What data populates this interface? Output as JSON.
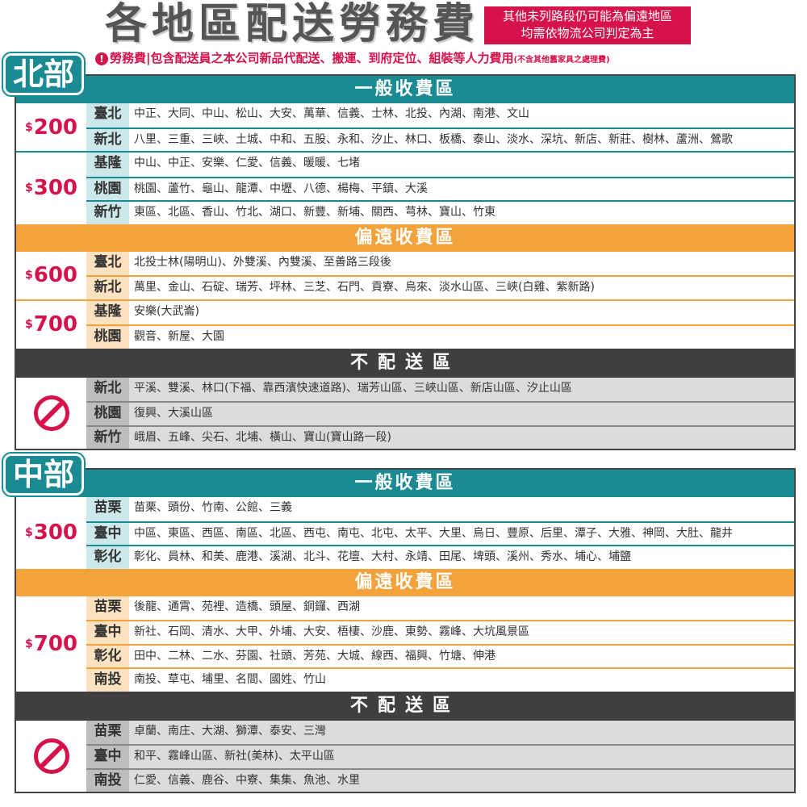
{
  "header": {
    "title": "各地區配送勞務費",
    "note_line1": "其他未列路段仍可能為偏遠地區",
    "note_line2": "均需依物流公司判定為主",
    "subtitle_icon": "exclamation-icon",
    "subtitle_mark": "!",
    "subtitle": "勞務費|包含配送員之本公司新品代配送、搬運、到府定位、組裝等人力費用",
    "subtitle_small": "(不含其他舊家具之處理費)"
  },
  "colors": {
    "teal": "#1a8a93",
    "orange": "#f4a23c",
    "dark": "#3f3f3f",
    "red": "#d6124a"
  },
  "regions": [
    {
      "name": "北部",
      "sections": [
        {
          "title": "一般收費區",
          "type": "general",
          "groups": [
            {
              "price": "200",
              "rows": [
                {
                  "city": "臺北",
                  "areas": "中正、大同、中山、松山、大安、萬華、信義、士林、北投、內湖、南港、文山"
                },
                {
                  "city": "新北",
                  "areas": "八里、三重、三峽、土城、中和、五股、永和、汐止、林口、板橋、泰山、淡水、深坑、新店、新莊、樹林、蘆洲、鶯歌"
                }
              ]
            },
            {
              "price": "300",
              "rows": [
                {
                  "city": "基隆",
                  "areas": "中山、中正、安樂、仁愛、信義、暖暖、七堵"
                },
                {
                  "city": "桃園",
                  "areas": "桃園、蘆竹、龜山、龍潭、中壢、八德、楊梅、平鎮、大溪"
                },
                {
                  "city": "新竹",
                  "areas": "東區、北區、香山、竹北、湖口、新豐、新埔、關西、芎林、寶山、竹東"
                }
              ]
            }
          ]
        },
        {
          "title": "偏遠收費區",
          "type": "remote",
          "groups": [
            {
              "price": "600",
              "rows": [
                {
                  "city": "臺北",
                  "areas": "北投士林(陽明山)、外雙溪、內雙溪、至善路三段後"
                },
                {
                  "city": "新北",
                  "areas": "萬里、金山、石碇、瑞芳、坪林、三芝、石門、貢寮、烏來、淡水山區、三峽(白雞、紫新路)"
                }
              ]
            },
            {
              "price": "700",
              "rows": [
                {
                  "city": "基隆",
                  "areas": "安樂(大武崙)"
                },
                {
                  "city": "桃園",
                  "areas": "觀音、新屋、大園"
                }
              ]
            }
          ]
        },
        {
          "title": "不配送區",
          "type": "none",
          "groups": [
            {
              "icon": "prohibited-icon",
              "rows": [
                {
                  "city": "新北",
                  "areas": "平溪、雙溪、林口(下福、靠西濱快速道路)、瑞芳山區、三峽山區、新店山區、汐止山區"
                },
                {
                  "city": "桃園",
                  "areas": "復興、大溪山區"
                },
                {
                  "city": "新竹",
                  "areas": "峨眉、五峰、尖石、北埔、橫山、寶山(寶山路一段)"
                }
              ]
            }
          ]
        }
      ]
    },
    {
      "name": "中部",
      "sections": [
        {
          "title": "一般收費區",
          "type": "general",
          "groups": [
            {
              "price": "300",
              "rows": [
                {
                  "city": "苗栗",
                  "areas": "苗栗、頭份、竹南、公館、三義"
                },
                {
                  "city": "臺中",
                  "areas": "中區、東區、西區、南區、北區、西屯、南屯、北屯、太平、大里、烏日、豐原、后里、潭子、大雅、神岡、大肚、龍井"
                },
                {
                  "city": "彰化",
                  "areas": "彰化、員林、和美、鹿港、溪湖、北斗、花壇、大村、永靖、田尾、埤頭、溪州、秀水、埔心、埔鹽"
                }
              ]
            }
          ]
        },
        {
          "title": "偏遠收費區",
          "type": "remote",
          "groups": [
            {
              "price": "700",
              "rows": [
                {
                  "city": "苗栗",
                  "areas": "後龍、通霄、苑裡、造橋、頭屋、銅鑼、西湖"
                },
                {
                  "city": "臺中",
                  "areas": "新社、石岡、清水、大甲、外埔、大安、梧棲、沙鹿、東勢、霧峰、大坑風景區"
                },
                {
                  "city": "彰化",
                  "areas": "田中、二林、二水、芬園、社頭、芳苑、大城、線西、福興、竹塘、伸港"
                },
                {
                  "city": "南投",
                  "areas": "南投、草屯、埔里、名間、國姓、竹山"
                }
              ]
            }
          ]
        },
        {
          "title": "不配送區",
          "type": "none",
          "groups": [
            {
              "icon": "prohibited-icon",
              "rows": [
                {
                  "city": "苗栗",
                  "areas": "卓蘭、南庄、大湖、獅潭、泰安、三灣"
                },
                {
                  "city": "臺中",
                  "areas": "和平、霧峰山區、新社(美林)、太平山區"
                },
                {
                  "city": "南投",
                  "areas": "仁愛、信義、鹿谷、中寮、集集、魚池、水里"
                }
              ]
            }
          ]
        }
      ]
    }
  ]
}
